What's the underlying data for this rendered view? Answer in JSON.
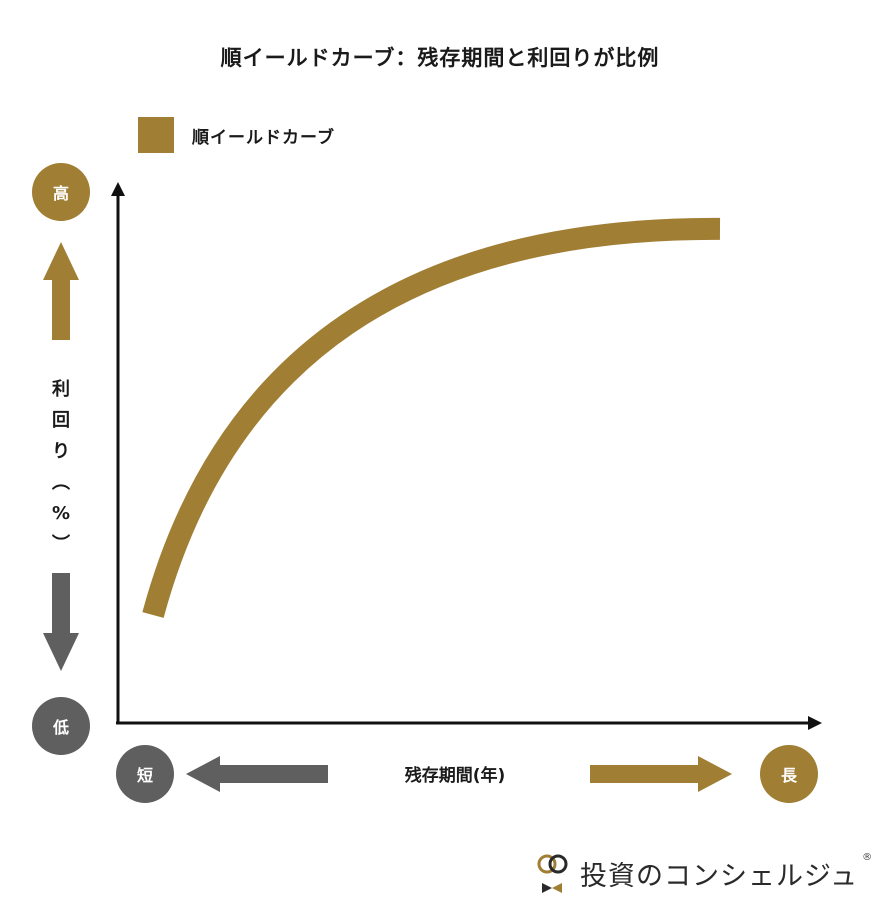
{
  "chart_data": {
    "type": "line",
    "title": "順イールドカーブ：残存期間と利回りが比例",
    "legend": {
      "label": "順イールドカーブ",
      "placement": "top-left",
      "color": "#a07e33"
    },
    "series": [
      {
        "name": "順イールドカーブ",
        "color": "#a07e33",
        "x": [
          0.05,
          0.12,
          0.2,
          0.3,
          0.4,
          0.5,
          0.6,
          0.7,
          0.8,
          0.9,
          0.86
        ],
        "y": [
          0.2,
          0.36,
          0.5,
          0.62,
          0.72,
          0.79,
          0.85,
          0.88,
          0.9,
          0.91,
          0.915
        ]
      }
    ],
    "xlim": [
      0,
      1
    ],
    "ylim": [
      0,
      1
    ],
    "xlabel": "残存期間(年)",
    "ylabel": "利回り（%）",
    "y_high_label": "高",
    "y_low_label": "低",
    "x_short_label": "短",
    "x_long_label": "長",
    "grid": false
  },
  "colors": {
    "accent": "#a07e33",
    "neutral": "#5f5f5f",
    "axis": "#111111"
  },
  "brand": {
    "name": "投資のコンシェルジュ",
    "reg_mark": "®"
  }
}
